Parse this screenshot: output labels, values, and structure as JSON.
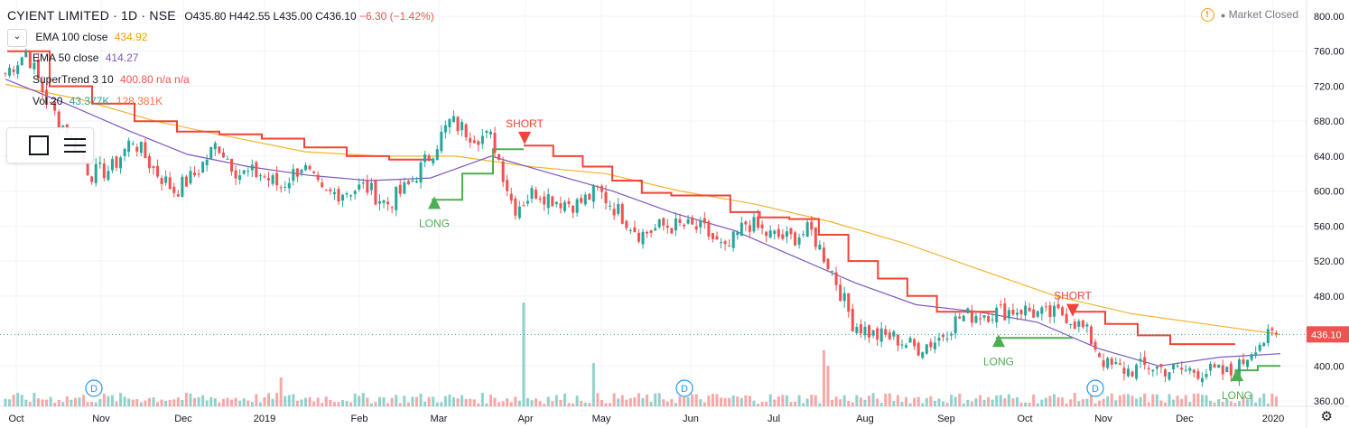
{
  "header": {
    "symbol": "CYIENT LIMITED · 1D · NSE",
    "open": "O435.80",
    "high": "H442.55",
    "low": "L435.00",
    "close": "C436.10",
    "change": "−6.30 (−1.42%)"
  },
  "indicators": [
    {
      "name": "EMA 100 close",
      "value": "434.92",
      "value_color": "#f2a000"
    },
    {
      "name": "EMA 50 close",
      "value": "414.27",
      "value_color": "#7e57c2"
    },
    {
      "name": "SuperTrend 3 10",
      "value": "400.80 n/a n/a",
      "value_color": "#ef5350"
    },
    {
      "name": "Vol 20",
      "value": "43.377K",
      "value_color": "#26a69a",
      "value2": "128.381K",
      "value2_color": "#ff7043"
    }
  ],
  "collapse_icon": "chevron-down-icon",
  "toolbar_icons": [
    "rectangle-icon",
    "lines-icon"
  ],
  "status": {
    "text": "Market Closed",
    "icon": "warning-icon"
  },
  "settings_icon": "gear-icon",
  "colors": {
    "up": "#26a69a",
    "down": "#ef5350",
    "ema100": "#f7b32b",
    "ema50": "#7e57c2",
    "st_up": "#4caf50",
    "st_down": "#f44336",
    "price_tag": "#ef5350"
  },
  "chart_data": {
    "type": "candlestick",
    "title": "CYIENT LIMITED · 1D · NSE",
    "ylim": [
      360,
      800
    ],
    "y_ticks": [
      "800.00",
      "760.00",
      "720.00",
      "680.00",
      "640.00",
      "600.00",
      "560.00",
      "520.00",
      "480.00",
      "440.00",
      "400.00",
      "360.00"
    ],
    "x_tick_labels": [
      "Oct",
      "Nov",
      "Dec",
      "2019",
      "Feb",
      "Mar",
      "Apr",
      "May",
      "Jun",
      "Jul",
      "Aug",
      "Sep",
      "Oct",
      "Nov",
      "Dec",
      "2020"
    ],
    "last_price": "436.10",
    "price_anchors": [
      {
        "d": "Oct",
        "c": 735
      },
      {
        "d": "Oct",
        "c": 760
      },
      {
        "d": "Oct",
        "c": 700
      },
      {
        "d": "Oct",
        "c": 665
      },
      {
        "d": "Nov",
        "c": 620
      },
      {
        "d": "Nov",
        "c": 625
      },
      {
        "d": "Nov",
        "c": 660
      },
      {
        "d": "Nov",
        "c": 625
      },
      {
        "d": "Dec",
        "c": 600
      },
      {
        "d": "Dec",
        "c": 620
      },
      {
        "d": "Dec",
        "c": 655
      },
      {
        "d": "Dec",
        "c": 620
      },
      {
        "d": "2019",
        "c": 620
      },
      {
        "d": "2019",
        "c": 605
      },
      {
        "d": "2019",
        "c": 630
      },
      {
        "d": "2019",
        "c": 595
      },
      {
        "d": "Feb",
        "c": 600
      },
      {
        "d": "Feb",
        "c": 605
      },
      {
        "d": "Feb",
        "c": 585
      },
      {
        "d": "Feb",
        "c": 605
      },
      {
        "d": "Mar",
        "c": 640
      },
      {
        "d": "Mar",
        "c": 680
      },
      {
        "d": "Mar",
        "c": 665
      },
      {
        "d": "Mar",
        "c": 660
      },
      {
        "d": "Apr",
        "c": 580
      },
      {
        "d": "Apr",
        "c": 600
      },
      {
        "d": "Apr",
        "c": 590
      },
      {
        "d": "Apr",
        "c": 585
      },
      {
        "d": "May",
        "c": 600
      },
      {
        "d": "May",
        "c": 575
      },
      {
        "d": "May",
        "c": 550
      },
      {
        "d": "May",
        "c": 560
      },
      {
        "d": "Jun",
        "c": 560
      },
      {
        "d": "Jun",
        "c": 555
      },
      {
        "d": "Jun",
        "c": 530
      },
      {
        "d": "Jun",
        "c": 565
      },
      {
        "d": "Jul",
        "c": 550
      },
      {
        "d": "Jul",
        "c": 545
      },
      {
        "d": "Jul",
        "c": 555
      },
      {
        "d": "Jul",
        "c": 510
      },
      {
        "d": "Aug",
        "c": 450
      },
      {
        "d": "Aug",
        "c": 435
      },
      {
        "d": "Aug",
        "c": 432
      },
      {
        "d": "Aug",
        "c": 420
      },
      {
        "d": "Sep",
        "c": 430
      },
      {
        "d": "Sep",
        "c": 455
      },
      {
        "d": "Sep",
        "c": 460
      },
      {
        "d": "Sep",
        "c": 462
      },
      {
        "d": "Oct",
        "c": 465
      },
      {
        "d": "Oct",
        "c": 458
      },
      {
        "d": "Oct",
        "c": 460
      },
      {
        "d": "Oct",
        "c": 440
      },
      {
        "d": "Nov",
        "c": 400
      },
      {
        "d": "Nov",
        "c": 395
      },
      {
        "d": "Nov",
        "c": 400
      },
      {
        "d": "Nov",
        "c": 395
      },
      {
        "d": "Dec",
        "c": 395
      },
      {
        "d": "Dec",
        "c": 393
      },
      {
        "d": "Dec",
        "c": 390
      },
      {
        "d": "Dec",
        "c": 425
      },
      {
        "d": "2020",
        "c": 436
      }
    ],
    "ema100_anchors": [
      722,
      705,
      680,
      662,
      645,
      640,
      640,
      628,
      620,
      600,
      585,
      565,
      540,
      510,
      480,
      460,
      448,
      436
    ],
    "ema50_anchors": [
      728,
      700,
      670,
      642,
      628,
      618,
      612,
      615,
      640,
      620,
      600,
      575,
      555,
      525,
      495,
      470,
      462,
      450,
      420,
      400,
      410,
      414
    ],
    "supertrend": [
      {
        "dir": "down",
        "from": "Oct",
        "to": "Mar",
        "levels": [
          760,
          720,
          700,
          680,
          668,
          665,
          660,
          650,
          640,
          636
        ]
      },
      {
        "dir": "up",
        "from": "Mar",
        "to": "Apr",
        "levels": [
          590,
          620,
          648
        ]
      },
      {
        "dir": "down",
        "from": "Apr",
        "to": "Sep",
        "levels": [
          652,
          640,
          628,
          612,
          598,
          595,
          595,
          576,
          570,
          568,
          550,
          520,
          500,
          480,
          462,
          462
        ]
      },
      {
        "dir": "up",
        "from": "Sep",
        "to": "Oct",
        "levels": [
          432,
          432
        ]
      },
      {
        "dir": "down",
        "from": "Oct",
        "to": "Dec",
        "levels": [
          462,
          448,
          435,
          425,
          425
        ]
      },
      {
        "dir": "up",
        "from": "Dec",
        "to": "2020",
        "levels": [
          395,
          400
        ]
      }
    ],
    "signals": [
      {
        "type": "LONG",
        "label": "LONG",
        "month": "Mar",
        "price": 590
      },
      {
        "type": "SHORT",
        "label": "SHORT",
        "month": "Apr",
        "price": 672
      },
      {
        "type": "LONG",
        "label": "LONG",
        "month": "Sep",
        "price": 432
      },
      {
        "type": "SHORT",
        "label": "SHORT",
        "month": "Oct",
        "price": 475
      },
      {
        "type": "LONG",
        "label": "LONG",
        "month": "Dec",
        "price": 393
      }
    ],
    "dividend_markers": [
      {
        "label": "D",
        "month": "Nov"
      },
      {
        "label": "D",
        "month": "Jun"
      },
      {
        "label": "D",
        "month": "Nov"
      }
    ],
    "volume_spikes": [
      "Jan",
      "Apr",
      "May",
      "Aug"
    ]
  }
}
